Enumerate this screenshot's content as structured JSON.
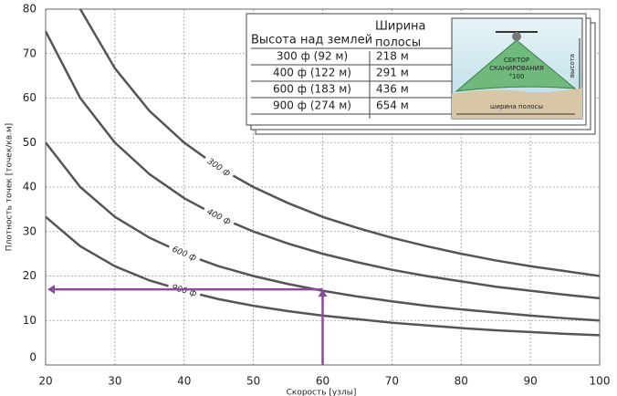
{
  "chart_data": {
    "type": "line",
    "x_label": "Скорость [узлы]",
    "y_label": "Плотность точек [точек/кв.м]",
    "x": [
      20,
      25,
      30,
      35,
      40,
      45,
      50,
      55,
      60,
      65,
      70,
      75,
      80,
      85,
      90,
      95,
      100
    ],
    "series": [
      {
        "name": "300 ф",
        "color": "#555555",
        "values": [
          null,
          80,
          66.7,
          57.1,
          50,
          44.4,
          40,
          36.4,
          33.3,
          30.8,
          28.6,
          26.7,
          25,
          23.5,
          22.2,
          21.1,
          20
        ]
      },
      {
        "name": "400 ф",
        "color": "#555555",
        "values": [
          75,
          60,
          50,
          42.9,
          37.5,
          33.3,
          30,
          27.3,
          25,
          23.1,
          21.4,
          20,
          18.8,
          17.6,
          16.7,
          15.8,
          15
        ]
      },
      {
        "name": "600 ф",
        "color": "#555555",
        "values": [
          50,
          40,
          33.3,
          28.6,
          25,
          22.2,
          20,
          18.2,
          16.7,
          15.4,
          14.3,
          13.3,
          12.5,
          11.8,
          11.1,
          10.5,
          10
        ]
      },
      {
        "name": "900 ф",
        "color": "#555555",
        "values": [
          33.3,
          26.7,
          22.2,
          19,
          16.7,
          14.8,
          13.3,
          12.1,
          11.1,
          10.3,
          9.5,
          8.9,
          8.3,
          7.8,
          7.4,
          7,
          6.7
        ]
      }
    ],
    "xlim": [
      20,
      100
    ],
    "ylim": [
      0,
      80
    ],
    "xticks": [
      20,
      30,
      40,
      50,
      60,
      70,
      80,
      90,
      100
    ],
    "yticks": [
      0,
      10,
      20,
      30,
      40,
      50,
      60,
      70,
      80
    ],
    "grid": true,
    "arrow": {
      "x": 60,
      "y": 17,
      "color": "#8b4a9c"
    },
    "inset": {
      "header": [
        "Высота над землей",
        "Ширина",
        "полосы"
      ],
      "rows": [
        [
          "300 ф (92 м)",
          "218 м"
        ],
        [
          "400 ф (122 м)",
          "291 м"
        ],
        [
          "600 ф (183 м)",
          "436 м"
        ],
        [
          "900 ф (274 м)",
          "654 м"
        ]
      ],
      "diagram": {
        "sector": [
          "СЕКТОР",
          "СКАНИРОВАНИЯ",
          "°100"
        ],
        "height": "высота",
        "width": "ширина полосы"
      }
    }
  }
}
